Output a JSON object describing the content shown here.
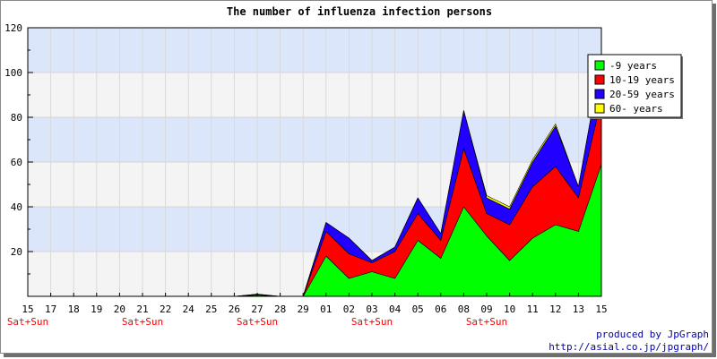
{
  "chart_data": {
    "type": "area",
    "stacked": true,
    "title": "The number of influenza infection persons",
    "xlabel": "",
    "ylabel": "",
    "ylim": [
      0,
      120
    ],
    "yticks": [
      20,
      40,
      60,
      80,
      100,
      120
    ],
    "grid": true,
    "legend_position": "top-right",
    "categories": [
      "15",
      "17",
      "18",
      "19",
      "20",
      "21",
      "22",
      "24",
      "25",
      "26",
      "27",
      "28",
      "29",
      "01",
      "02",
      "03",
      "04",
      "05",
      "06",
      "08",
      "09",
      "10",
      "11",
      "12",
      "13",
      "15"
    ],
    "weekend_label": "Sat+Sun",
    "weekend_marks": [
      0,
      5,
      10,
      15,
      20
    ],
    "series": [
      {
        "name": "-9 years",
        "color": "#00ff00",
        "values": [
          0,
          0,
          0,
          0,
          0,
          0,
          0,
          0,
          0,
          0,
          0.5,
          0,
          0,
          18,
          8,
          11,
          8,
          25,
          17,
          40,
          27,
          16,
          26,
          32,
          29,
          59
        ]
      },
      {
        "name": "10-19 years",
        "color": "#ff0000",
        "values": [
          0,
          0,
          0,
          0,
          0,
          0,
          0,
          0,
          0,
          0,
          0.3,
          0,
          0,
          11,
          11,
          4,
          12,
          12,
          8,
          26,
          10,
          16,
          23,
          26,
          15,
          29
        ]
      },
      {
        "name": "20-59 years",
        "color": "#2200ff",
        "values": [
          0,
          0,
          0,
          0,
          0,
          0,
          0,
          0,
          0,
          0,
          0.2,
          0,
          0,
          4,
          7,
          1,
          2,
          7,
          3,
          17,
          7,
          7,
          11,
          18,
          5,
          18
        ]
      },
      {
        "name": "60- years",
        "color": "#ffff00",
        "values": [
          0,
          0,
          0,
          0,
          0,
          0,
          0,
          0,
          0,
          0,
          0,
          0,
          0,
          0,
          0,
          0,
          0,
          0,
          0,
          0,
          1,
          1,
          1,
          1,
          0,
          0
        ]
      }
    ]
  },
  "credits": {
    "line1": "produced by JpGraph",
    "line2": "http://asial.co.jp/jpgraph/"
  }
}
